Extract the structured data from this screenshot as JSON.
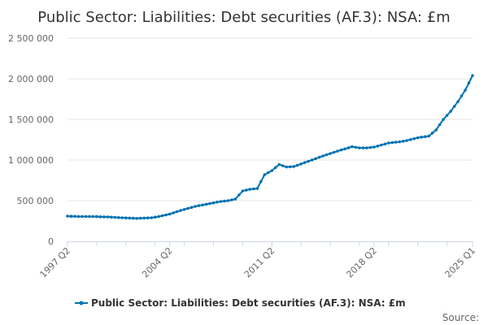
{
  "chart_data": {
    "type": "line",
    "title": "Public Sector: Liabilities: Debt securities (AF.3): NSA: £m",
    "xlabel": "",
    "ylabel": "",
    "ylim": [
      0,
      2500000
    ],
    "y_ticks": [
      "0",
      "500 000",
      "1 000 000",
      "1 500 000",
      "2 000 000",
      "2 500 000"
    ],
    "x_ticks": [
      "1997 Q2",
      "2004 Q2",
      "2011 Q2",
      "2018 Q2",
      "2025 Q1"
    ],
    "grid": true,
    "legend": "bottom",
    "series": [
      {
        "name": "Public Sector: Liabilities: Debt securities (AF.3): NSA: £m",
        "color": "#0072b2",
        "x": [
          "1997 Q2",
          "1998 Q1",
          "1999 Q1",
          "2000 Q1",
          "2001 Q1",
          "2002 Q1",
          "2003 Q1",
          "2003 Q3",
          "2004 Q2",
          "2005 Q1",
          "2006 Q1",
          "2007 Q1",
          "2007 Q4",
          "2008 Q2",
          "2008 Q4",
          "2009 Q2",
          "2009 Q4",
          "2010 Q2",
          "2010 Q4",
          "2011 Q2",
          "2011 Q4",
          "2012 Q2",
          "2012 Q4",
          "2013 Q4",
          "2014 Q4",
          "2015 Q4",
          "2016 Q4",
          "2017 Q2",
          "2017 Q4",
          "2018 Q2",
          "2019 Q2",
          "2020 Q1",
          "2020 Q3",
          "2021 Q2",
          "2022 Q1",
          "2022 Q3",
          "2023 Q1",
          "2023 Q3",
          "2024 Q1",
          "2024 Q3",
          "2025 Q1"
        ],
        "values": [
          310000,
          305000,
          305000,
          300000,
          290000,
          282000,
          290000,
          305000,
          335000,
          380000,
          430000,
          465000,
          490000,
          500000,
          520000,
          620000,
          640000,
          650000,
          820000,
          870000,
          945000,
          915000,
          920000,
          985000,
          1050000,
          1110000,
          1165000,
          1150000,
          1150000,
          1160000,
          1210000,
          1225000,
          1240000,
          1275000,
          1295000,
          1370000,
          1500000,
          1600000,
          1720000,
          1860000,
          2040000
        ]
      }
    ]
  },
  "source_label": "Source:"
}
